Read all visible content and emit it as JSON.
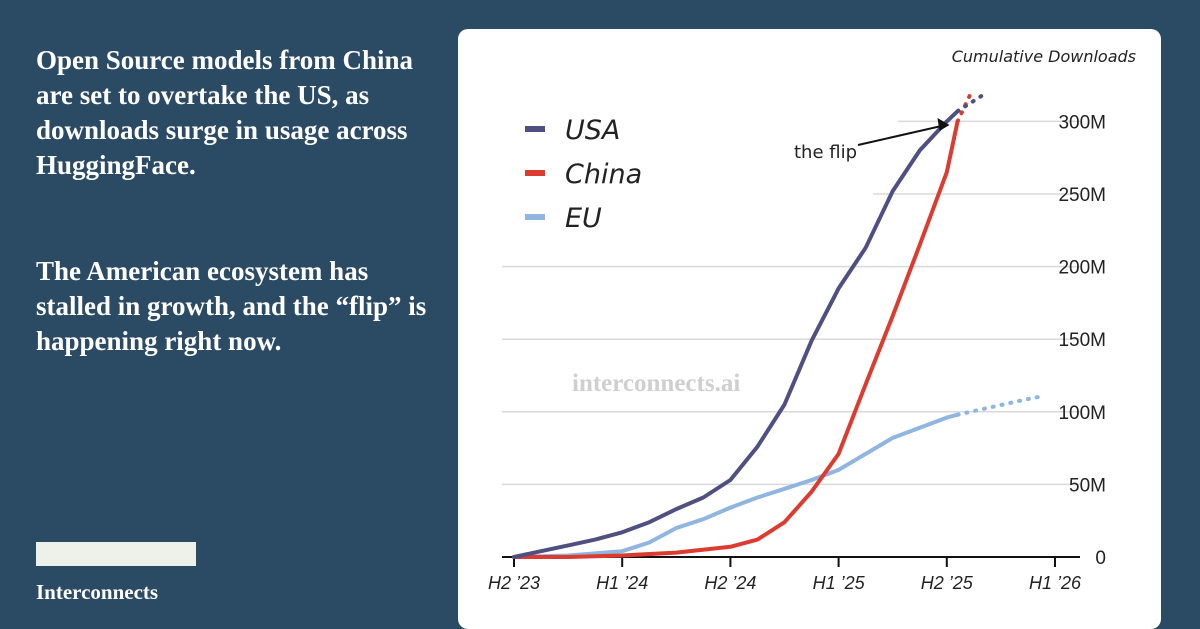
{
  "headline": {
    "paragraph1": "Open Source models from China are set to overtake the US, as downloads surge in usage across HuggingFace.",
    "paragraph2": "The American ecosystem has stalled in growth, and the “flip” is happening right now."
  },
  "brand": {
    "name": "Interconnects",
    "watermark": "interconnects.ai"
  },
  "colors": {
    "background": "#2b4a64",
    "card": "#ffffff",
    "usa": "#4f4f82",
    "china": "#dc3b2f",
    "eu": "#8fb5e0",
    "grid": "#d9d9d9",
    "axis": "#111111"
  },
  "chart_data": {
    "type": "line",
    "title": "Cumulative Downloads",
    "xlabel": "",
    "ylabel": "Cumulative Downloads",
    "ylim": [
      0,
      300
    ],
    "y_unit": "M",
    "y_ticks": [
      0,
      50,
      100,
      150,
      200,
      250,
      300
    ],
    "y_tick_labels": [
      "0",
      "50M",
      "100M",
      "150M",
      "200M",
      "250M",
      "300M"
    ],
    "x_ticks": [
      0,
      1,
      2,
      3,
      4,
      5
    ],
    "x_tick_labels": [
      "H2 ’23",
      "H1 ’24",
      "H2 ’24",
      "H1 ’25",
      "H2 ’25",
      "H1 ’26"
    ],
    "xlim": [
      0,
      5.2
    ],
    "legend_position": "top-left",
    "annotation": {
      "text": "the flip",
      "x": 4.08,
      "y": 302
    },
    "series": [
      {
        "name": "USA",
        "x": [
          0,
          0.25,
          0.5,
          0.75,
          1.0,
          1.25,
          1.5,
          1.75,
          2.0,
          2.25,
          2.5,
          2.75,
          3.0,
          3.25,
          3.5,
          3.75,
          4.0,
          4.1
        ],
        "values": [
          0,
          4,
          8,
          12,
          17,
          24,
          33,
          41,
          53,
          76,
          105,
          149,
          185,
          213,
          252,
          280,
          300,
          307
        ],
        "projection": {
          "x": [
            4.1,
            4.33
          ],
          "values": [
            307,
            318
          ]
        }
      },
      {
        "name": "China",
        "x": [
          0,
          0.5,
          1.0,
          1.5,
          2.0,
          2.25,
          2.5,
          2.75,
          3.0,
          3.25,
          3.5,
          3.75,
          4.0,
          4.1
        ],
        "values": [
          0,
          0,
          1,
          3,
          7,
          12,
          24,
          45,
          71,
          119,
          166,
          215,
          265,
          300
        ],
        "projection": {
          "x": [
            4.1,
            4.22
          ],
          "values": [
            300,
            319
          ]
        }
      },
      {
        "name": "EU",
        "x": [
          0,
          0.5,
          1.0,
          1.25,
          1.5,
          1.75,
          2.0,
          2.25,
          2.5,
          2.75,
          3.0,
          3.25,
          3.5,
          3.75,
          4.0,
          4.1
        ],
        "values": [
          0,
          1,
          4,
          10,
          20,
          26,
          34,
          41,
          47,
          53,
          60,
          71,
          82,
          89,
          96,
          98
        ],
        "projection": {
          "x": [
            4.1,
            4.4,
            4.7,
            4.9
          ],
          "values": [
            98,
            103,
            108,
            111
          ]
        }
      }
    ]
  }
}
